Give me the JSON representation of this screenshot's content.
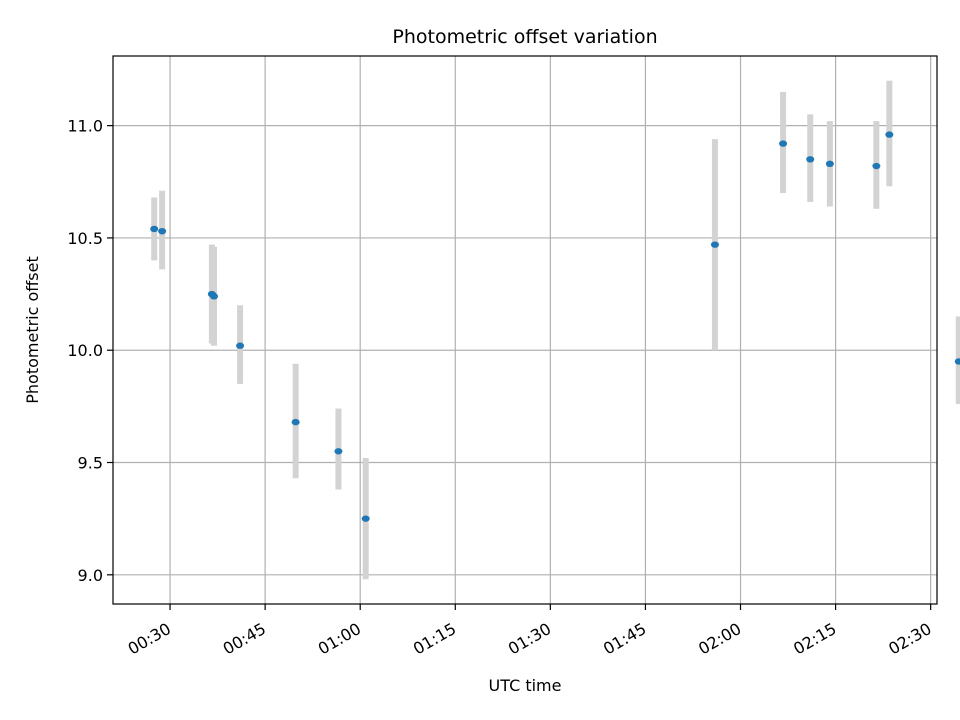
{
  "chart_data": {
    "type": "scatter",
    "title": "Photometric offset variation",
    "xlabel": "UTC time",
    "ylabel": "Photometric offset",
    "x_unit": "HH:MM",
    "xlim": [
      "00:21",
      "02:31"
    ],
    "ylim": [
      8.87,
      11.31
    ],
    "x_ticks": [
      "00:30",
      "00:45",
      "01:00",
      "01:15",
      "01:30",
      "01:45",
      "02:00",
      "02:15",
      "02:30"
    ],
    "y_ticks": [
      9.0,
      9.5,
      10.0,
      10.5,
      11.0
    ],
    "y_tick_labels": [
      "9.0",
      "9.5",
      "10.0",
      "10.5",
      "11.0"
    ],
    "grid": true,
    "points": [
      {
        "time": "00:27:30",
        "y": 10.54,
        "err_low": 10.4,
        "err_high": 10.68
      },
      {
        "time": "00:28:45",
        "y": 10.53,
        "err_low": 10.36,
        "err_high": 10.71
      },
      {
        "time": "00:36:36",
        "y": 10.25,
        "err_low": 10.03,
        "err_high": 10.47
      },
      {
        "time": "00:36:56",
        "y": 10.24,
        "err_low": 10.02,
        "err_high": 10.46
      },
      {
        "time": "00:41:03",
        "y": 10.02,
        "err_low": 9.85,
        "err_high": 10.2
      },
      {
        "time": "00:49:49",
        "y": 9.68,
        "err_low": 9.43,
        "err_high": 9.94
      },
      {
        "time": "00:56:34",
        "y": 9.55,
        "err_low": 9.38,
        "err_high": 9.74
      },
      {
        "time": "01:00:52",
        "y": 9.25,
        "err_low": 8.98,
        "err_high": 9.52
      },
      {
        "time": "01:55:58",
        "y": 10.47,
        "err_low": 10.0,
        "err_high": 10.94
      },
      {
        "time": "02:06:43",
        "y": 10.92,
        "err_low": 10.7,
        "err_high": 11.15
      },
      {
        "time": "02:11:00",
        "y": 10.85,
        "err_low": 10.66,
        "err_high": 11.05
      },
      {
        "time": "02:14:06",
        "y": 10.83,
        "err_low": 10.64,
        "err_high": 11.02
      },
      {
        "time": "02:21:26",
        "y": 10.82,
        "err_low": 10.63,
        "err_high": 11.02
      },
      {
        "time": "02:23:29",
        "y": 10.96,
        "err_low": 10.73,
        "err_high": 11.2
      },
      {
        "time": "02:34:26",
        "y": 9.95,
        "err_low": 9.76,
        "err_high": 10.15
      }
    ],
    "colors": {
      "point": "#1f77b4",
      "errorbar": "#d3d3d3",
      "grid": "#b0b0b0",
      "axes": "#000000"
    }
  }
}
